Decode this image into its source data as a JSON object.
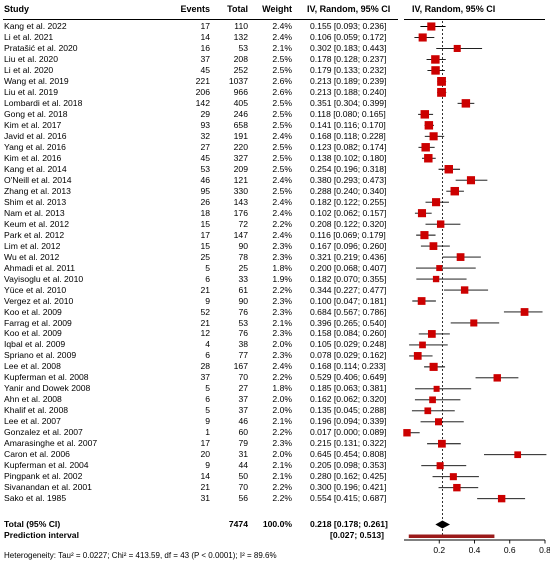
{
  "header": {
    "study": "Study",
    "events": "Events",
    "total": "Total",
    "weight": "Weight",
    "ci_col": "IV, Random, 95% CI",
    "plot_col": "IV, Random, 95% CI"
  },
  "studies": [
    {
      "study": "Kang et al. 2022",
      "events": "17",
      "total": "110",
      "weight": "2.4%",
      "ci": "0.155 [0.093; 0.236]"
    },
    {
      "study": "Li et al. 2021",
      "events": "14",
      "total": "132",
      "weight": "2.4%",
      "ci": "0.106 [0.059; 0.172]"
    },
    {
      "study": "Pratašić et al. 2020",
      "events": "16",
      "total": "53",
      "weight": "2.1%",
      "ci": "0.302 [0.183; 0.443]"
    },
    {
      "study": "Liu et al. 2020",
      "events": "37",
      "total": "208",
      "weight": "2.5%",
      "ci": "0.178 [0.128; 0.237]"
    },
    {
      "study": "Li et al. 2020",
      "events": "45",
      "total": "252",
      "weight": "2.5%",
      "ci": "0.179 [0.133; 0.232]"
    },
    {
      "study": "Wang et al. 2019",
      "events": "221",
      "total": "1037",
      "weight": "2.6%",
      "ci": "0.213 [0.189; 0.239]"
    },
    {
      "study": "Liu et al. 2019",
      "events": "206",
      "total": "966",
      "weight": "2.6%",
      "ci": "0.213 [0.188; 0.240]"
    },
    {
      "study": "Lombardi et al. 2018",
      "events": "142",
      "total": "405",
      "weight": "2.5%",
      "ci": "0.351 [0.304; 0.399]"
    },
    {
      "study": "Gong et al. 2018",
      "events": "29",
      "total": "246",
      "weight": "2.5%",
      "ci": "0.118 [0.080; 0.165]"
    },
    {
      "study": "Kim et al. 2017",
      "events": "93",
      "total": "658",
      "weight": "2.5%",
      "ci": "0.141 [0.116; 0.170]"
    },
    {
      "study": "Javid et al. 2016",
      "events": "32",
      "total": "191",
      "weight": "2.4%",
      "ci": "0.168 [0.118; 0.228]"
    },
    {
      "study": "Yang et al. 2016",
      "events": "27",
      "total": "220",
      "weight": "2.5%",
      "ci": "0.123 [0.082; 0.174]"
    },
    {
      "study": "Kim et al. 2016",
      "events": "45",
      "total": "327",
      "weight": "2.5%",
      "ci": "0.138 [0.102; 0.180]"
    },
    {
      "study": "Kang et al. 2014",
      "events": "53",
      "total": "209",
      "weight": "2.5%",
      "ci": "0.254 [0.196; 0.318]"
    },
    {
      "study": "O'Neill et al. 2014",
      "events": "46",
      "total": "121",
      "weight": "2.4%",
      "ci": "0.380 [0.293; 0.473]"
    },
    {
      "study": "Zhang et al. 2013",
      "events": "95",
      "total": "330",
      "weight": "2.5%",
      "ci": "0.288 [0.240; 0.340]"
    },
    {
      "study": "Shim et al. 2013",
      "events": "26",
      "total": "143",
      "weight": "2.4%",
      "ci": "0.182 [0.122; 0.255]"
    },
    {
      "study": "Nam et al. 2013",
      "events": "18",
      "total": "176",
      "weight": "2.4%",
      "ci": "0.102 [0.062; 0.157]"
    },
    {
      "study": "Keum et al. 2012",
      "events": "15",
      "total": "72",
      "weight": "2.2%",
      "ci": "0.208 [0.122; 0.320]"
    },
    {
      "study": "Park et al. 2012",
      "events": "17",
      "total": "147",
      "weight": "2.4%",
      "ci": "0.116 [0.069; 0.179]"
    },
    {
      "study": "Lim et al. 2012",
      "events": "15",
      "total": "90",
      "weight": "2.3%",
      "ci": "0.167 [0.096; 0.260]"
    },
    {
      "study": "Wu et al. 2012",
      "events": "25",
      "total": "78",
      "weight": "2.3%",
      "ci": "0.321 [0.219; 0.436]"
    },
    {
      "study": "Ahmadi et al. 2011",
      "events": "5",
      "total": "25",
      "weight": "1.8%",
      "ci": "0.200 [0.068; 0.407]"
    },
    {
      "study": "Vayisoglu et al. 2010",
      "events": "6",
      "total": "33",
      "weight": "1.9%",
      "ci": "0.182 [0.070; 0.355]"
    },
    {
      "study": "Yüce et al. 2010",
      "events": "21",
      "total": "61",
      "weight": "2.2%",
      "ci": "0.344 [0.227; 0.477]"
    },
    {
      "study": "Vergez et al. 2010",
      "events": "9",
      "total": "90",
      "weight": "2.3%",
      "ci": "0.100 [0.047; 0.181]"
    },
    {
      "study": "Koo et al. 2009",
      "events": "52",
      "total": "76",
      "weight": "2.3%",
      "ci": "0.684 [0.567; 0.786]"
    },
    {
      "study": "Farrag et al. 2009",
      "events": "21",
      "total": "53",
      "weight": "2.1%",
      "ci": "0.396 [0.265; 0.540]"
    },
    {
      "study": "Koo et al. 2009",
      "events": "12",
      "total": "76",
      "weight": "2.3%",
      "ci": "0.158 [0.084; 0.260]"
    },
    {
      "study": "Iqbal et al. 2009",
      "events": "4",
      "total": "38",
      "weight": "2.0%",
      "ci": "0.105 [0.029; 0.248]"
    },
    {
      "study": "Spriano et al. 2009",
      "events": "6",
      "total": "77",
      "weight": "2.3%",
      "ci": "0.078 [0.029; 0.162]"
    },
    {
      "study": "Lee et al. 2008",
      "events": "28",
      "total": "167",
      "weight": "2.4%",
      "ci": "0.168 [0.114; 0.233]"
    },
    {
      "study": "Kupferman et al. 2008",
      "events": "37",
      "total": "70",
      "weight": "2.2%",
      "ci": "0.529 [0.406; 0.649]"
    },
    {
      "study": "Yanir and Dowek 2008",
      "events": "5",
      "total": "27",
      "weight": "1.8%",
      "ci": "0.185 [0.063; 0.381]"
    },
    {
      "study": "Ahn et al. 2008",
      "events": "6",
      "total": "37",
      "weight": "2.0%",
      "ci": "0.162 [0.062; 0.320]"
    },
    {
      "study": "Khalif et al. 2008",
      "events": "5",
      "total": "37",
      "weight": "2.0%",
      "ci": "0.135 [0.045; 0.288]"
    },
    {
      "study": "Lee et al. 2007",
      "events": "9",
      "total": "46",
      "weight": "2.1%",
      "ci": "0.196 [0.094; 0.339]"
    },
    {
      "study": "Gonzalez et al. 2007",
      "events": "1",
      "total": "60",
      "weight": "2.2%",
      "ci": "0.017 [0.000; 0.089]"
    },
    {
      "study": "Amarasinghe et al. 2007",
      "events": "17",
      "total": "79",
      "weight": "2.3%",
      "ci": "0.215 [0.131; 0.322]"
    },
    {
      "study": "Caron et al. 2006",
      "events": "20",
      "total": "31",
      "weight": "2.0%",
      "ci": "0.645 [0.454; 0.808]"
    },
    {
      "study": "Kupferman et al. 2004",
      "events": "9",
      "total": "44",
      "weight": "2.1%",
      "ci": "0.205 [0.098; 0.353]"
    },
    {
      "study": "Pingpank et al. 2002",
      "events": "14",
      "total": "50",
      "weight": "2.1%",
      "ci": "0.280 [0.162; 0.425]"
    },
    {
      "study": "Sivanandan et al. 2001",
      "events": "21",
      "total": "70",
      "weight": "2.2%",
      "ci": "0.300 [0.196; 0.421]"
    },
    {
      "study": "Sako et al. 1985",
      "events": "31",
      "total": "56",
      "weight": "2.2%",
      "ci": "0.554 [0.415; 0.687]"
    }
  ],
  "total": {
    "study": "Total (95% CI)",
    "total": "7474",
    "weight": "100.0%",
    "ci": "0.218 [0.178; 0.261]"
  },
  "prediction": {
    "study": "Prediction interval",
    "ci": "[0.027; 0.513]"
  },
  "heterogeneity": "Heterogeneity: Tau² = 0.0227; Chi² = 413.59, df = 43 (P < 0.0001); I² = 89.6%",
  "chart_data": {
    "type": "forest",
    "axis": {
      "min": 0,
      "max": 0.8,
      "ticks": [
        "0.2",
        "0.4",
        "0.6",
        "0.8"
      ],
      "reference_line": 0.218
    },
    "marker_color": "#cc0000",
    "pooled": {
      "estimate": 0.218,
      "lower": 0.178,
      "upper": 0.261
    },
    "prediction_interval": {
      "lower": 0.027,
      "upper": 0.513,
      "color": "#9b1b1b"
    },
    "estimates": [
      0.155,
      0.106,
      0.302,
      0.178,
      0.179,
      0.213,
      0.213,
      0.351,
      0.118,
      0.141,
      0.168,
      0.123,
      0.138,
      0.254,
      0.38,
      0.288,
      0.182,
      0.102,
      0.208,
      0.116,
      0.167,
      0.321,
      0.2,
      0.182,
      0.344,
      0.1,
      0.684,
      0.396,
      0.158,
      0.105,
      0.078,
      0.168,
      0.529,
      0.185,
      0.162,
      0.135,
      0.196,
      0.017,
      0.215,
      0.645,
      0.205,
      0.28,
      0.3,
      0.554
    ],
    "lower": [
      0.093,
      0.059,
      0.183,
      0.128,
      0.133,
      0.189,
      0.188,
      0.304,
      0.08,
      0.116,
      0.118,
      0.082,
      0.102,
      0.196,
      0.293,
      0.24,
      0.122,
      0.062,
      0.122,
      0.069,
      0.096,
      0.219,
      0.068,
      0.07,
      0.227,
      0.047,
      0.567,
      0.265,
      0.084,
      0.029,
      0.029,
      0.114,
      0.406,
      0.063,
      0.062,
      0.045,
      0.094,
      0.0,
      0.131,
      0.454,
      0.098,
      0.162,
      0.196,
      0.415
    ],
    "upper": [
      0.236,
      0.172,
      0.443,
      0.237,
      0.232,
      0.239,
      0.24,
      0.399,
      0.165,
      0.17,
      0.228,
      0.174,
      0.18,
      0.318,
      0.473,
      0.34,
      0.255,
      0.157,
      0.32,
      0.179,
      0.26,
      0.436,
      0.407,
      0.355,
      0.477,
      0.181,
      0.786,
      0.54,
      0.26,
      0.248,
      0.162,
      0.233,
      0.649,
      0.381,
      0.32,
      0.288,
      0.339,
      0.089,
      0.322,
      0.808,
      0.353,
      0.425,
      0.421,
      0.687
    ],
    "weights_pct": [
      2.4,
      2.4,
      2.1,
      2.5,
      2.5,
      2.6,
      2.6,
      2.5,
      2.5,
      2.5,
      2.4,
      2.5,
      2.5,
      2.5,
      2.4,
      2.5,
      2.4,
      2.4,
      2.2,
      2.4,
      2.3,
      2.3,
      1.8,
      1.9,
      2.2,
      2.3,
      2.3,
      2.1,
      2.3,
      2.0,
      2.3,
      2.4,
      2.2,
      1.8,
      2.0,
      2.0,
      2.1,
      2.2,
      2.3,
      2.0,
      2.1,
      2.1,
      2.2,
      2.2
    ]
  }
}
